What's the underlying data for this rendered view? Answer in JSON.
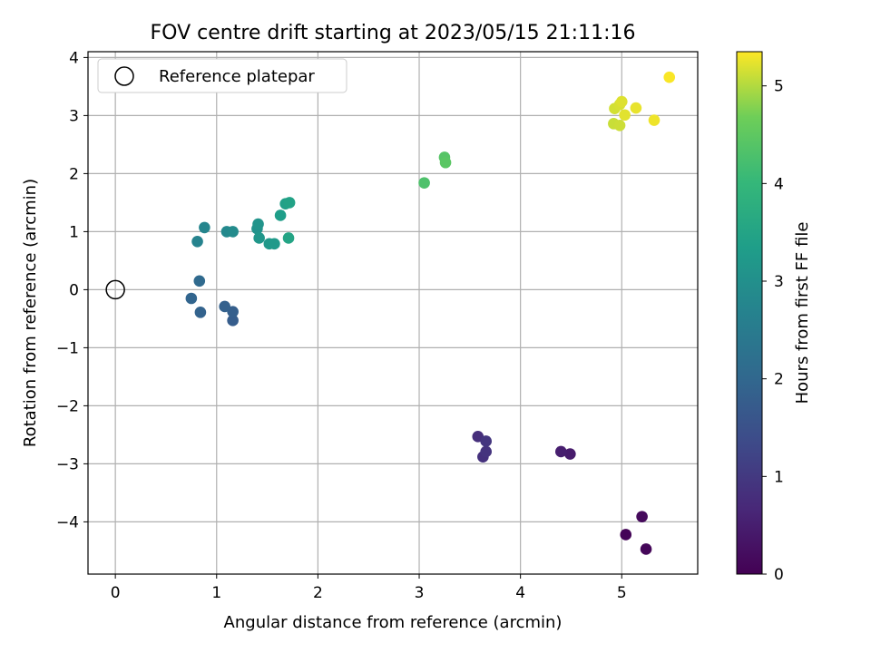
{
  "chart_data": {
    "type": "scatter",
    "title": "FOV centre drift starting at 2023/05/15 21:11:16",
    "xlabel": "Angular distance from reference (arcmin)",
    "ylabel": "Rotation from reference (arcmin)",
    "xlim": [
      -0.27,
      5.75
    ],
    "ylim": [
      -4.9,
      4.1
    ],
    "xticks": [
      0,
      1,
      2,
      3,
      4,
      5
    ],
    "yticks": [
      -4,
      -3,
      -2,
      -1,
      0,
      1,
      2,
      3,
      4
    ],
    "grid": true,
    "legend": {
      "position": "top-left",
      "entries": [
        "Reference platepar"
      ]
    },
    "reference_point": {
      "x": 0,
      "y": 0,
      "label": "Reference platepar"
    },
    "colorbar": {
      "label": "Hours from first FF file",
      "colormap": "viridis",
      "range": [
        0,
        5.35
      ],
      "ticks": [
        0,
        1,
        2,
        3,
        4,
        5
      ]
    },
    "points": [
      {
        "x": 5.04,
        "y": -4.22,
        "c": 0.05
      },
      {
        "x": 5.24,
        "y": -4.47,
        "c": 0.1
      },
      {
        "x": 5.2,
        "y": -3.91,
        "c": 0.15
      },
      {
        "x": 4.49,
        "y": -2.83,
        "c": 0.45
      },
      {
        "x": 4.4,
        "y": -2.79,
        "c": 0.5
      },
      {
        "x": 3.58,
        "y": -2.53,
        "c": 0.8
      },
      {
        "x": 3.63,
        "y": -2.88,
        "c": 0.85
      },
      {
        "x": 3.66,
        "y": -2.79,
        "c": 0.9
      },
      {
        "x": 3.66,
        "y": -2.61,
        "c": 0.95
      },
      {
        "x": 1.16,
        "y": -0.53,
        "c": 1.75
      },
      {
        "x": 1.16,
        "y": -0.38,
        "c": 1.8
      },
      {
        "x": 1.08,
        "y": -0.29,
        "c": 1.85
      },
      {
        "x": 0.84,
        "y": -0.39,
        "c": 1.9
      },
      {
        "x": 0.75,
        "y": -0.15,
        "c": 1.95
      },
      {
        "x": 0.83,
        "y": 0.15,
        "c": 2.05
      },
      {
        "x": 0.81,
        "y": 0.83,
        "c": 2.7
      },
      {
        "x": 0.88,
        "y": 1.07,
        "c": 2.75
      },
      {
        "x": 1.1,
        "y": 1.0,
        "c": 2.85
      },
      {
        "x": 1.16,
        "y": 1.0,
        "c": 2.9
      },
      {
        "x": 1.4,
        "y": 1.05,
        "c": 3.05
      },
      {
        "x": 1.41,
        "y": 1.13,
        "c": 3.1
      },
      {
        "x": 1.42,
        "y": 0.89,
        "c": 3.15
      },
      {
        "x": 1.52,
        "y": 0.79,
        "c": 3.2
      },
      {
        "x": 1.57,
        "y": 0.79,
        "c": 3.25
      },
      {
        "x": 1.63,
        "y": 1.28,
        "c": 3.35
      },
      {
        "x": 1.68,
        "y": 1.48,
        "c": 3.4
      },
      {
        "x": 1.72,
        "y": 1.5,
        "c": 3.45
      },
      {
        "x": 1.71,
        "y": 0.89,
        "c": 3.5
      },
      {
        "x": 3.05,
        "y": 1.84,
        "c": 4.3
      },
      {
        "x": 3.25,
        "y": 2.28,
        "c": 4.4
      },
      {
        "x": 3.26,
        "y": 2.19,
        "c": 4.45
      },
      {
        "x": 4.92,
        "y": 2.86,
        "c": 5.1
      },
      {
        "x": 4.98,
        "y": 2.83,
        "c": 5.12
      },
      {
        "x": 4.93,
        "y": 3.12,
        "c": 5.15
      },
      {
        "x": 4.98,
        "y": 3.19,
        "c": 5.17
      },
      {
        "x": 5.0,
        "y": 3.24,
        "c": 5.2
      },
      {
        "x": 5.03,
        "y": 3.01,
        "c": 5.22
      },
      {
        "x": 5.14,
        "y": 3.13,
        "c": 5.25
      },
      {
        "x": 5.32,
        "y": 2.92,
        "c": 5.28
      },
      {
        "x": 5.47,
        "y": 3.66,
        "c": 5.33
      }
    ]
  }
}
